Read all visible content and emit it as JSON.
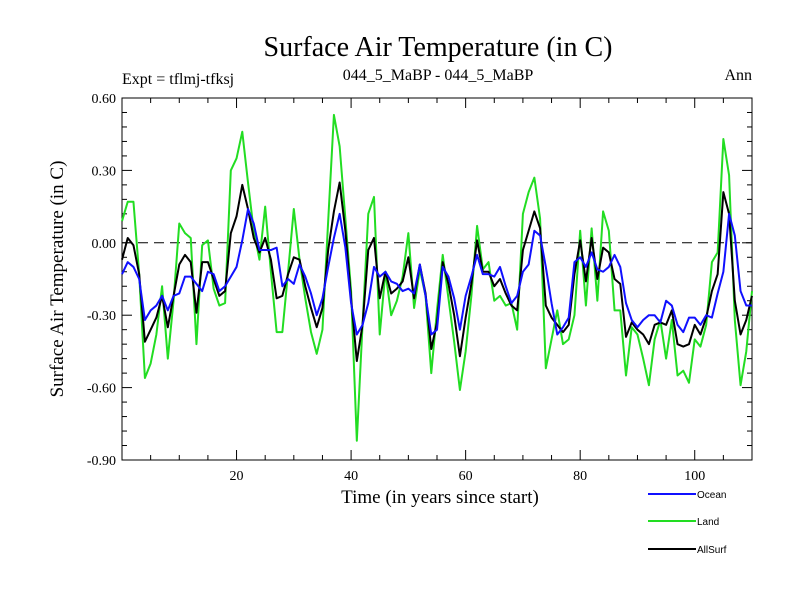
{
  "chart_data": {
    "type": "line",
    "title": "Surface Air Temperature (in C)",
    "subtitle_left": "Expt = tflmj-tfksj",
    "subtitle_center": "044_5_MaBP - 044_5_MaBP",
    "subtitle_right": "Ann",
    "xlabel": "Time (in years since start)",
    "ylabel": "Surface Air Temperature (in C)",
    "xlim": [
      0,
      110
    ],
    "ylim": [
      -0.9,
      0.6
    ],
    "xticks": [
      20,
      40,
      60,
      80,
      100
    ],
    "xtick_labels": [
      "20",
      "40",
      "60",
      "80",
      "100"
    ],
    "yticks": [
      0.6,
      0.3,
      0.0,
      -0.3,
      -0.6,
      -0.9
    ],
    "ytick_labels": [
      "0.60",
      "0.30",
      "0.00",
      "-0.30",
      "-0.60",
      "-0.90"
    ],
    "zero_line": 0.0,
    "x": [
      0,
      1,
      2,
      3,
      4,
      5,
      6,
      7,
      8,
      9,
      10,
      11,
      12,
      13,
      14,
      15,
      16,
      17,
      18,
      19,
      20,
      21,
      22,
      23,
      24,
      25,
      26,
      27,
      28,
      29,
      30,
      31,
      32,
      33,
      34,
      35,
      36,
      37,
      38,
      39,
      40,
      41,
      42,
      43,
      44,
      45,
      46,
      47,
      48,
      49,
      50,
      51,
      52,
      53,
      54,
      55,
      56,
      57,
      58,
      59,
      60,
      61,
      62,
      63,
      64,
      65,
      66,
      67,
      68,
      69,
      70,
      71,
      72,
      73,
      74,
      75,
      76,
      77,
      78,
      79,
      80,
      81,
      82,
      83,
      84,
      85,
      86,
      87,
      88,
      89,
      90,
      91,
      92,
      93,
      94,
      95,
      96,
      97,
      98,
      99,
      100,
      101,
      102,
      103,
      104,
      105,
      106,
      107,
      108,
      109,
      110
    ],
    "series": [
      {
        "name": "Ocean",
        "color": "#1010ff",
        "values": [
          -0.13,
          -0.08,
          -0.1,
          -0.15,
          -0.32,
          -0.28,
          -0.26,
          -0.22,
          -0.28,
          -0.22,
          -0.21,
          -0.14,
          -0.14,
          -0.17,
          -0.2,
          -0.12,
          -0.13,
          -0.2,
          -0.18,
          -0.14,
          -0.1,
          0.01,
          0.14,
          0.08,
          -0.03,
          -0.03,
          -0.03,
          -0.02,
          -0.18,
          -0.15,
          -0.17,
          -0.09,
          -0.14,
          -0.21,
          -0.3,
          -0.23,
          -0.1,
          0.02,
          0.12,
          -0.02,
          -0.25,
          -0.38,
          -0.34,
          -0.25,
          -0.1,
          -0.14,
          -0.12,
          -0.16,
          -0.17,
          -0.2,
          -0.19,
          -0.21,
          -0.09,
          -0.22,
          -0.38,
          -0.36,
          -0.1,
          -0.14,
          -0.23,
          -0.36,
          -0.22,
          -0.14,
          -0.05,
          -0.13,
          -0.13,
          -0.14,
          -0.1,
          -0.18,
          -0.25,
          -0.22,
          -0.12,
          -0.09,
          0.05,
          0.03,
          -0.1,
          -0.25,
          -0.38,
          -0.35,
          -0.31,
          -0.08,
          -0.06,
          -0.1,
          -0.04,
          -0.11,
          -0.12,
          -0.1,
          -0.05,
          -0.1,
          -0.25,
          -0.32,
          -0.35,
          -0.32,
          -0.3,
          -0.3,
          -0.33,
          -0.24,
          -0.26,
          -0.34,
          -0.37,
          -0.31,
          -0.31,
          -0.34,
          -0.3,
          -0.31,
          -0.21,
          -0.12,
          0.12,
          0.03,
          -0.2,
          -0.26,
          -0.26
        ]
      },
      {
        "name": "Land",
        "color": "#22dd22",
        "values": [
          0.09,
          0.17,
          0.17,
          -0.13,
          -0.56,
          -0.5,
          -0.38,
          -0.18,
          -0.48,
          -0.24,
          0.08,
          0.04,
          0.02,
          -0.42,
          -0.01,
          0.01,
          -0.19,
          -0.26,
          -0.25,
          0.3,
          0.35,
          0.46,
          0.25,
          0.05,
          -0.07,
          0.15,
          -0.12,
          -0.37,
          -0.37,
          -0.12,
          0.14,
          -0.07,
          -0.23,
          -0.37,
          -0.46,
          -0.36,
          0.09,
          0.53,
          0.4,
          0.1,
          -0.2,
          -0.82,
          -0.34,
          0.12,
          0.19,
          -0.38,
          -0.12,
          -0.3,
          -0.24,
          -0.14,
          0.04,
          -0.27,
          -0.11,
          -0.22,
          -0.54,
          -0.28,
          -0.05,
          -0.23,
          -0.41,
          -0.61,
          -0.45,
          -0.22,
          0.07,
          -0.11,
          -0.08,
          -0.24,
          -0.22,
          -0.26,
          -0.25,
          -0.36,
          0.12,
          0.21,
          0.27,
          0.1,
          -0.52,
          -0.4,
          -0.28,
          -0.42,
          -0.4,
          -0.3,
          0.05,
          -0.26,
          0.06,
          -0.24,
          0.13,
          0.05,
          -0.28,
          -0.28,
          -0.55,
          -0.35,
          -0.38,
          -0.48,
          -0.59,
          -0.4,
          -0.32,
          -0.48,
          -0.32,
          -0.55,
          -0.53,
          -0.58,
          -0.4,
          -0.43,
          -0.34,
          -0.08,
          -0.04,
          0.43,
          0.28,
          -0.32,
          -0.59,
          -0.45,
          -0.2
        ]
      },
      {
        "name": "AllSurf",
        "color": "#000000",
        "values": [
          -0.07,
          0.02,
          -0.01,
          -0.13,
          -0.41,
          -0.36,
          -0.31,
          -0.22,
          -0.35,
          -0.22,
          -0.09,
          -0.05,
          -0.08,
          -0.29,
          -0.08,
          -0.08,
          -0.15,
          -0.22,
          -0.2,
          0.04,
          0.11,
          0.24,
          0.14,
          0.02,
          -0.04,
          0.02,
          -0.07,
          -0.23,
          -0.22,
          -0.13,
          -0.06,
          -0.07,
          -0.18,
          -0.27,
          -0.35,
          -0.27,
          -0.03,
          0.13,
          0.25,
          0.05,
          -0.23,
          -0.49,
          -0.34,
          -0.03,
          0.02,
          -0.23,
          -0.12,
          -0.21,
          -0.19,
          -0.16,
          -0.06,
          -0.23,
          -0.09,
          -0.21,
          -0.44,
          -0.33,
          -0.08,
          -0.17,
          -0.3,
          -0.47,
          -0.31,
          -0.17,
          0.01,
          -0.12,
          -0.12,
          -0.18,
          -0.15,
          -0.21,
          -0.26,
          -0.28,
          -0.03,
          0.05,
          0.13,
          0.06,
          -0.26,
          -0.31,
          -0.34,
          -0.37,
          -0.34,
          -0.13,
          0.01,
          -0.16,
          0.02,
          -0.15,
          -0.02,
          -0.04,
          -0.15,
          -0.17,
          -0.39,
          -0.33,
          -0.36,
          -0.38,
          -0.42,
          -0.34,
          -0.33,
          -0.34,
          -0.28,
          -0.42,
          -0.43,
          -0.42,
          -0.34,
          -0.38,
          -0.31,
          -0.2,
          -0.13,
          0.21,
          0.12,
          -0.24,
          -0.38,
          -0.32,
          -0.22
        ]
      }
    ]
  }
}
